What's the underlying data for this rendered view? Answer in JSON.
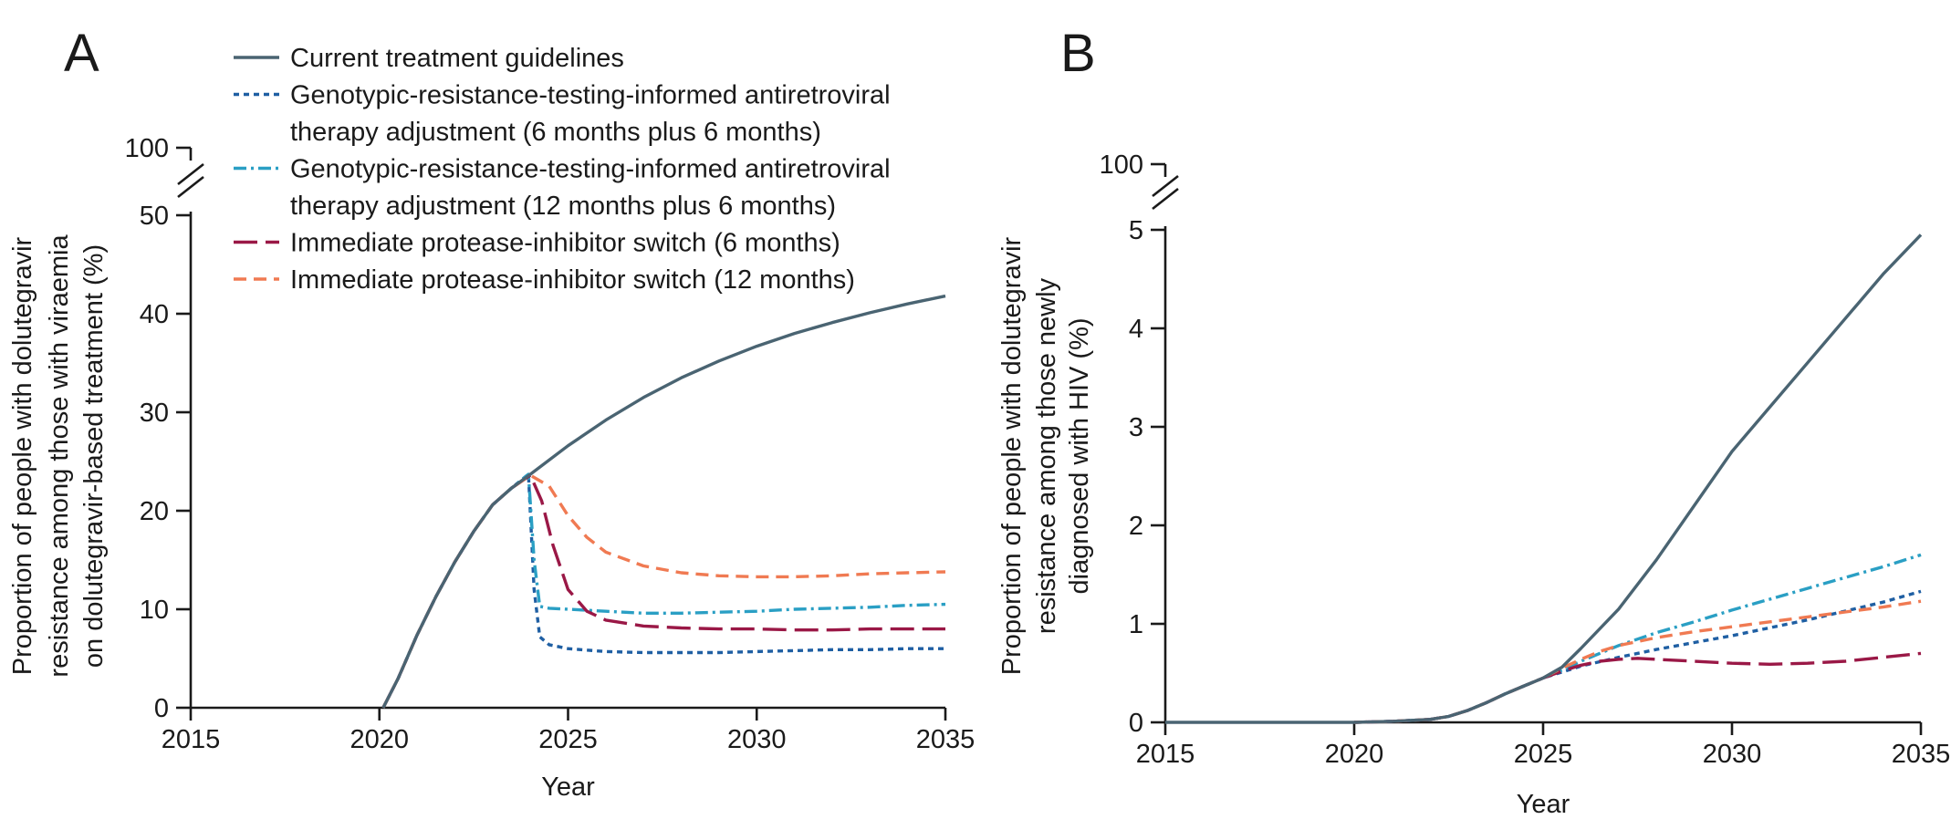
{
  "chart_data": [
    {
      "panel": "A",
      "type": "line",
      "xlabel": "Year",
      "ylabel_lines": [
        "Proportion of people with dolutegravir",
        "resistance among those with viraemia",
        "on dolutegravir-based treatment (%)"
      ],
      "x_ticks": [
        "2015",
        "2020",
        "2025",
        "2030",
        "2035"
      ],
      "y_ticks": [
        "0",
        "10",
        "20",
        "30",
        "40",
        "50"
      ],
      "y_break_label": "100",
      "xlim": [
        2015,
        2035
      ],
      "ylim": [
        0,
        50
      ],
      "y_axis_break": true,
      "grid": false,
      "series": [
        {
          "name": "Current treatment guidelines",
          "color": "#4a6472",
          "dash": "solid",
          "points": [
            [
              2020.1,
              0
            ],
            [
              2020.5,
              3
            ],
            [
              2021,
              7.4
            ],
            [
              2021.5,
              11.3
            ],
            [
              2022,
              14.8
            ],
            [
              2022.5,
              17.9
            ],
            [
              2023,
              20.6
            ],
            [
              2023.5,
              22.3
            ],
            [
              2024,
              23.7
            ],
            [
              2025,
              26.6
            ],
            [
              2026,
              29.2
            ],
            [
              2027,
              31.5
            ],
            [
              2028,
              33.5
            ],
            [
              2029,
              35.2
            ],
            [
              2030,
              36.7
            ],
            [
              2031,
              38.0
            ],
            [
              2032,
              39.1
            ],
            [
              2033,
              40.1
            ],
            [
              2034,
              41.0
            ],
            [
              2035,
              41.8
            ]
          ]
        },
        {
          "name": "Genotypic-resistance-testing-informed antiretroviral therapy adjustment (6 months plus 6 months)",
          "color": "#1f5fa3",
          "dash": "short",
          "points": [
            [
              2020.1,
              0
            ],
            [
              2020.5,
              3
            ],
            [
              2021,
              7.4
            ],
            [
              2021.5,
              11.3
            ],
            [
              2022,
              14.8
            ],
            [
              2022.5,
              17.9
            ],
            [
              2023,
              20.6
            ],
            [
              2023.5,
              22.3
            ],
            [
              2023.95,
              23.7
            ],
            [
              2024.1,
              12
            ],
            [
              2024.25,
              7.2
            ],
            [
              2024.5,
              6.4
            ],
            [
              2025,
              6.0
            ],
            [
              2026,
              5.7
            ],
            [
              2027,
              5.6
            ],
            [
              2028,
              5.6
            ],
            [
              2029,
              5.6
            ],
            [
              2030,
              5.7
            ],
            [
              2031,
              5.8
            ],
            [
              2032,
              5.9
            ],
            [
              2033,
              5.9
            ],
            [
              2034,
              6.0
            ],
            [
              2035,
              6.0
            ]
          ]
        },
        {
          "name": "Genotypic-resistance-testing-informed antiretroviral therapy adjustment (12 months plus 6 months)",
          "color": "#2a9fc4",
          "dash": "dashdot",
          "points": [
            [
              2020.1,
              0
            ],
            [
              2020.5,
              3
            ],
            [
              2021,
              7.4
            ],
            [
              2021.5,
              11.3
            ],
            [
              2022,
              14.8
            ],
            [
              2022.5,
              17.9
            ],
            [
              2023,
              20.6
            ],
            [
              2023.5,
              22.3
            ],
            [
              2023.95,
              23.7
            ],
            [
              2024.1,
              15
            ],
            [
              2024.25,
              10.3
            ],
            [
              2024.5,
              10.1
            ],
            [
              2025,
              10.0
            ],
            [
              2026,
              9.8
            ],
            [
              2027,
              9.6
            ],
            [
              2028,
              9.6
            ],
            [
              2029,
              9.7
            ],
            [
              2030,
              9.8
            ],
            [
              2031,
              10.0
            ],
            [
              2032,
              10.1
            ],
            [
              2033,
              10.2
            ],
            [
              2034,
              10.4
            ],
            [
              2035,
              10.5
            ]
          ]
        },
        {
          "name": "Immediate protease-inhibitor switch (6 months)",
          "color": "#9a1846",
          "dash": "long",
          "points": [
            [
              2020.1,
              0
            ],
            [
              2020.5,
              3
            ],
            [
              2021,
              7.4
            ],
            [
              2021.5,
              11.3
            ],
            [
              2022,
              14.8
            ],
            [
              2022.5,
              17.9
            ],
            [
              2023,
              20.6
            ],
            [
              2023.5,
              22.3
            ],
            [
              2024,
              23.6
            ],
            [
              2024.3,
              21
            ],
            [
              2024.6,
              16.5
            ],
            [
              2025,
              12.0
            ],
            [
              2025.5,
              9.8
            ],
            [
              2026,
              8.9
            ],
            [
              2027,
              8.3
            ],
            [
              2028,
              8.1
            ],
            [
              2029,
              8.0
            ],
            [
              2030,
              8.0
            ],
            [
              2031,
              7.9
            ],
            [
              2032,
              7.9
            ],
            [
              2033,
              8.0
            ],
            [
              2034,
              8.0
            ],
            [
              2035,
              8.0
            ]
          ]
        },
        {
          "name": "Immediate protease-inhibitor switch (12 months)",
          "color": "#f07a52",
          "dash": "medium",
          "points": [
            [
              2020.1,
              0
            ],
            [
              2020.5,
              3
            ],
            [
              2021,
              7.4
            ],
            [
              2021.5,
              11.3
            ],
            [
              2022,
              14.8
            ],
            [
              2022.5,
              17.9
            ],
            [
              2023,
              20.6
            ],
            [
              2023.5,
              22.3
            ],
            [
              2024,
              23.6
            ],
            [
              2024.5,
              22.5
            ],
            [
              2025,
              19.5
            ],
            [
              2025.5,
              17.3
            ],
            [
              2026,
              15.8
            ],
            [
              2027,
              14.4
            ],
            [
              2028,
              13.7
            ],
            [
              2029,
              13.4
            ],
            [
              2030,
              13.3
            ],
            [
              2031,
              13.3
            ],
            [
              2032,
              13.4
            ],
            [
              2033,
              13.6
            ],
            [
              2034,
              13.7
            ],
            [
              2035,
              13.8
            ]
          ]
        }
      ]
    },
    {
      "panel": "B",
      "type": "line",
      "xlabel": "Year",
      "ylabel_lines": [
        "Proportion of people with dolutegravir",
        "resistance among those newly",
        "diagnosed with HIV (%)"
      ],
      "x_ticks": [
        "2015",
        "2020",
        "2025",
        "2030",
        "2035"
      ],
      "y_ticks": [
        "0",
        "1",
        "2",
        "3",
        "4",
        "5"
      ],
      "y_break_label": "100",
      "xlim": [
        2015,
        2035
      ],
      "ylim": [
        0,
        5
      ],
      "y_axis_break": true,
      "grid": false,
      "series": [
        {
          "name": "Current treatment guidelines",
          "color": "#4a6472",
          "dash": "solid",
          "points": [
            [
              2015,
              0
            ],
            [
              2020,
              0
            ],
            [
              2021,
              0.01
            ],
            [
              2022,
              0.03
            ],
            [
              2022.5,
              0.06
            ],
            [
              2023,
              0.12
            ],
            [
              2023.5,
              0.2
            ],
            [
              2024,
              0.29
            ],
            [
              2024.5,
              0.37
            ],
            [
              2025,
              0.45
            ],
            [
              2025.5,
              0.56
            ],
            [
              2026,
              0.75
            ],
            [
              2027,
              1.15
            ],
            [
              2028,
              1.65
            ],
            [
              2029,
              2.2
            ],
            [
              2030,
              2.75
            ],
            [
              2031,
              3.2
            ],
            [
              2032,
              3.65
            ],
            [
              2033,
              4.1
            ],
            [
              2034,
              4.55
            ],
            [
              2035,
              4.95
            ]
          ]
        },
        {
          "name": "Genotypic-resistance-testing-informed antiretroviral therapy adjustment (6 months plus 6 months)",
          "color": "#1f5fa3",
          "dash": "short",
          "points": [
            [
              2020,
              0
            ],
            [
              2021,
              0.01
            ],
            [
              2022,
              0.03
            ],
            [
              2022.5,
              0.06
            ],
            [
              2023,
              0.12
            ],
            [
              2023.5,
              0.2
            ],
            [
              2024,
              0.29
            ],
            [
              2024.5,
              0.37
            ],
            [
              2025,
              0.45
            ],
            [
              2025.5,
              0.51
            ],
            [
              2026,
              0.57
            ],
            [
              2027,
              0.66
            ],
            [
              2028,
              0.74
            ],
            [
              2029,
              0.81
            ],
            [
              2030,
              0.88
            ],
            [
              2031,
              0.96
            ],
            [
              2032,
              1.04
            ],
            [
              2033,
              1.13
            ],
            [
              2034,
              1.22
            ],
            [
              2035,
              1.33
            ]
          ]
        },
        {
          "name": "Genotypic-resistance-testing-informed antiretroviral therapy adjustment (12 months plus 6 months)",
          "color": "#2a9fc4",
          "dash": "dashdot",
          "points": [
            [
              2020,
              0
            ],
            [
              2021,
              0.01
            ],
            [
              2022,
              0.03
            ],
            [
              2022.5,
              0.06
            ],
            [
              2023,
              0.12
            ],
            [
              2023.5,
              0.2
            ],
            [
              2024,
              0.29
            ],
            [
              2024.5,
              0.37
            ],
            [
              2025,
              0.45
            ],
            [
              2025.5,
              0.53
            ],
            [
              2026,
              0.62
            ],
            [
              2027,
              0.78
            ],
            [
              2028,
              0.91
            ],
            [
              2029,
              1.02
            ],
            [
              2030,
              1.14
            ],
            [
              2031,
              1.25
            ],
            [
              2032,
              1.36
            ],
            [
              2033,
              1.47
            ],
            [
              2034,
              1.58
            ],
            [
              2035,
              1.7
            ]
          ]
        },
        {
          "name": "Immediate protease-inhibitor switch (6 months)",
          "color": "#9a1846",
          "dash": "long",
          "points": [
            [
              2020,
              0
            ],
            [
              2021,
              0.01
            ],
            [
              2022,
              0.03
            ],
            [
              2022.5,
              0.06
            ],
            [
              2023,
              0.12
            ],
            [
              2023.5,
              0.2
            ],
            [
              2024,
              0.29
            ],
            [
              2024.5,
              0.37
            ],
            [
              2025,
              0.45
            ],
            [
              2025.5,
              0.52
            ],
            [
              2026,
              0.58
            ],
            [
              2026.5,
              0.62
            ],
            [
              2027,
              0.64
            ],
            [
              2027.5,
              0.65
            ],
            [
              2028,
              0.64
            ],
            [
              2029,
              0.62
            ],
            [
              2030,
              0.6
            ],
            [
              2031,
              0.59
            ],
            [
              2032,
              0.6
            ],
            [
              2033,
              0.62
            ],
            [
              2034,
              0.66
            ],
            [
              2035,
              0.7
            ]
          ]
        },
        {
          "name": "Immediate protease-inhibitor switch (12 months)",
          "color": "#f07a52",
          "dash": "medium",
          "points": [
            [
              2020,
              0
            ],
            [
              2021,
              0.01
            ],
            [
              2022,
              0.03
            ],
            [
              2022.5,
              0.06
            ],
            [
              2023,
              0.12
            ],
            [
              2023.5,
              0.2
            ],
            [
              2024,
              0.29
            ],
            [
              2024.5,
              0.37
            ],
            [
              2025,
              0.45
            ],
            [
              2025.5,
              0.55
            ],
            [
              2026,
              0.64
            ],
            [
              2026.5,
              0.72
            ],
            [
              2027,
              0.78
            ],
            [
              2028,
              0.86
            ],
            [
              2029,
              0.92
            ],
            [
              2030,
              0.97
            ],
            [
              2031,
              1.02
            ],
            [
              2032,
              1.07
            ],
            [
              2033,
              1.12
            ],
            [
              2034,
              1.17
            ],
            [
              2035,
              1.23
            ]
          ]
        }
      ]
    }
  ],
  "legend_entries": [
    {
      "lines": [
        "Current treatment guidelines"
      ],
      "color": "#4a6472",
      "dash": "solid"
    },
    {
      "lines": [
        "Genotypic-resistance-testing-informed antiretroviral",
        "therapy adjustment (6 months plus 6 months)"
      ],
      "color": "#1f5fa3",
      "dash": "short"
    },
    {
      "lines": [
        "Genotypic-resistance-testing-informed antiretroviral",
        "therapy adjustment (12 months plus 6 months)"
      ],
      "color": "#2a9fc4",
      "dash": "dashdot"
    },
    {
      "lines": [
        "Immediate protease-inhibitor switch (6 months)"
      ],
      "color": "#9a1846",
      "dash": "long"
    },
    {
      "lines": [
        "Immediate protease-inhibitor switch (12 months)"
      ],
      "color": "#f07a52",
      "dash": "medium"
    }
  ]
}
